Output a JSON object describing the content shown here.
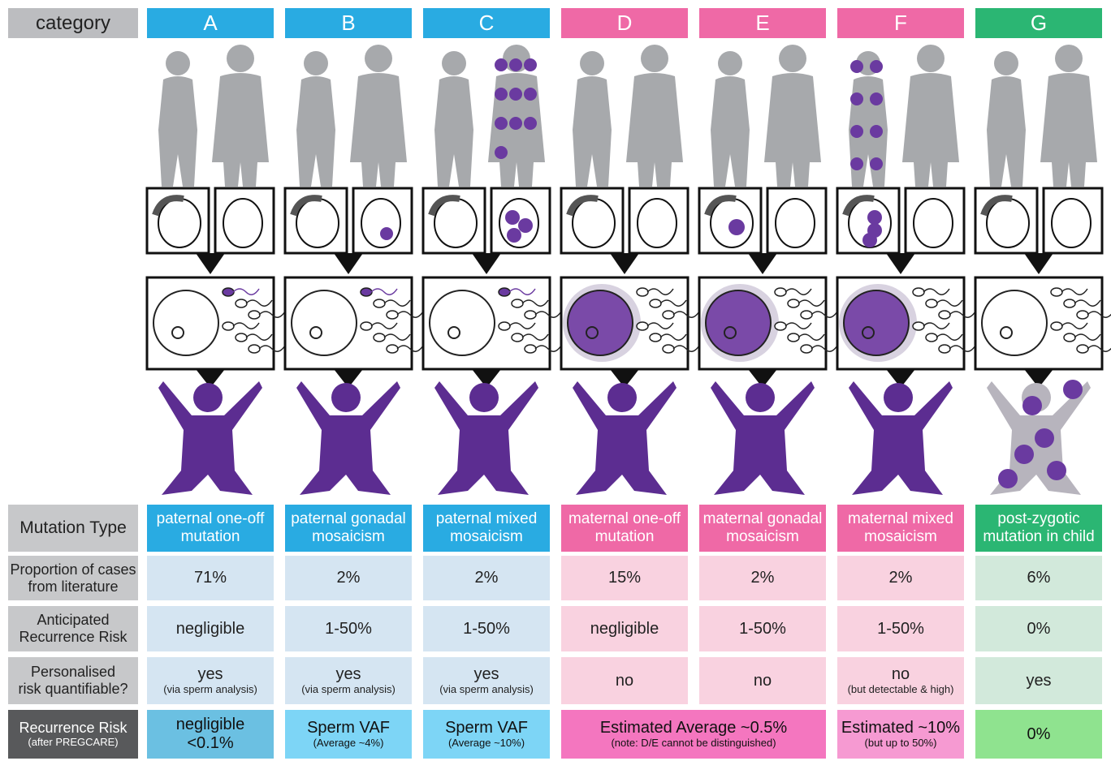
{
  "header": {
    "label": "category",
    "columns": [
      "A",
      "B",
      "C",
      "D",
      "E",
      "F",
      "G"
    ]
  },
  "rows": [
    {
      "label": [
        "Mutation Type"
      ],
      "cells": [
        [
          "paternal one-off",
          "mutation"
        ],
        [
          "paternal gonadal",
          "mosaicism"
        ],
        [
          "paternal mixed",
          "mosaicism"
        ],
        [
          "maternal one-off",
          "mutation"
        ],
        [
          "maternal gonadal",
          "mosaicism"
        ],
        [
          "maternal mixed",
          "mosaicism"
        ],
        [
          "post-zygotic",
          "mutation in child"
        ]
      ]
    },
    {
      "label": [
        "Proportion of cases",
        "from literature"
      ],
      "cells": [
        "71%",
        "2%",
        "2%",
        "15%",
        "2%",
        "2%",
        "6%"
      ]
    },
    {
      "label": [
        "Anticipated",
        "Recurrence Risk"
      ],
      "cells": [
        "negligible",
        "1-50%",
        "1-50%",
        "negligible",
        "1-50%",
        "1-50%",
        "0%"
      ]
    },
    {
      "label": [
        "Personalised",
        "risk quantifiable?"
      ],
      "cells": [
        {
          "main": "yes",
          "note": "(via sperm analysis)"
        },
        {
          "main": "yes",
          "note": "(via sperm analysis)"
        },
        {
          "main": "yes",
          "note": "(via sperm analysis)"
        },
        "no",
        "no",
        {
          "main": "no",
          "note": "(but detectable & high)"
        },
        "yes"
      ]
    },
    {
      "label": {
        "main": "Recurrence Risk",
        "note": "(after PREGCARE)"
      },
      "cells": [
        [
          "negligible",
          "<0.1%"
        ],
        {
          "main": "Sperm VAF",
          "note": "(Average ~4%)"
        },
        {
          "main": "Sperm VAF",
          "note": "(Average ~10%)"
        },
        {
          "main": "Estimated Average ~0.5%",
          "note": "(note: D/E cannot be distinguished)"
        },
        {
          "main": "Estimated ~10%",
          "note": "(but up to 50%)"
        },
        "0%"
      ]
    }
  ]
}
